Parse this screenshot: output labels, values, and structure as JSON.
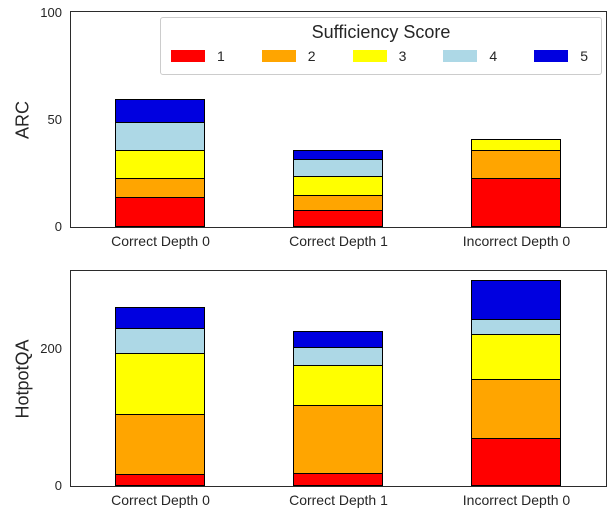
{
  "legend": {
    "title": "Sufficiency Score",
    "entries": [
      {
        "label": "1",
        "color": "#ff0000"
      },
      {
        "label": "2",
        "color": "#ffa500"
      },
      {
        "label": "3",
        "color": "#ffff00"
      },
      {
        "label": "4",
        "color": "#add8e6"
      },
      {
        "label": "5",
        "color": "#0000e0"
      }
    ]
  },
  "chart_data": [
    {
      "type": "bar",
      "stacked": true,
      "ylabel": "ARC",
      "categories": [
        "Correct Depth 0",
        "Correct Depth 1",
        "Incorrect Depth 0"
      ],
      "yticks": [
        0,
        50,
        100
      ],
      "ylim": [
        0,
        100
      ],
      "grid": false,
      "legend_position": "upper center (inside top axes)",
      "series": [
        {
          "name": "1",
          "color": "#ff0000",
          "values": [
            13,
            7,
            22
          ]
        },
        {
          "name": "2",
          "color": "#ffa500",
          "values": [
            9,
            7,
            13
          ]
        },
        {
          "name": "3",
          "color": "#ffff00",
          "values": [
            13,
            9,
            5
          ]
        },
        {
          "name": "4",
          "color": "#add8e6",
          "values": [
            13,
            8,
            0
          ]
        },
        {
          "name": "5",
          "color": "#0000e0",
          "values": [
            11,
            4,
            0
          ]
        }
      ],
      "totals": [
        59,
        35,
        40
      ]
    },
    {
      "type": "bar",
      "stacked": true,
      "ylabel": "HotpotQA",
      "categories": [
        "Correct Depth 0",
        "Correct Depth 1",
        "Incorrect Depth 0"
      ],
      "yticks": [
        0,
        200
      ],
      "ylim": [
        0,
        313
      ],
      "grid": false,
      "series": [
        {
          "name": "1",
          "color": "#ff0000",
          "values": [
            15,
            16,
            68
          ]
        },
        {
          "name": "2",
          "color": "#ffa500",
          "values": [
            87,
            100,
            85
          ]
        },
        {
          "name": "3",
          "color": "#ffff00",
          "values": [
            89,
            58,
            67
          ]
        },
        {
          "name": "4",
          "color": "#add8e6",
          "values": [
            37,
            26,
            21
          ]
        },
        {
          "name": "5",
          "color": "#0000e0",
          "values": [
            31,
            24,
            57
          ]
        }
      ],
      "totals": [
        259,
        224,
        298
      ]
    }
  ]
}
